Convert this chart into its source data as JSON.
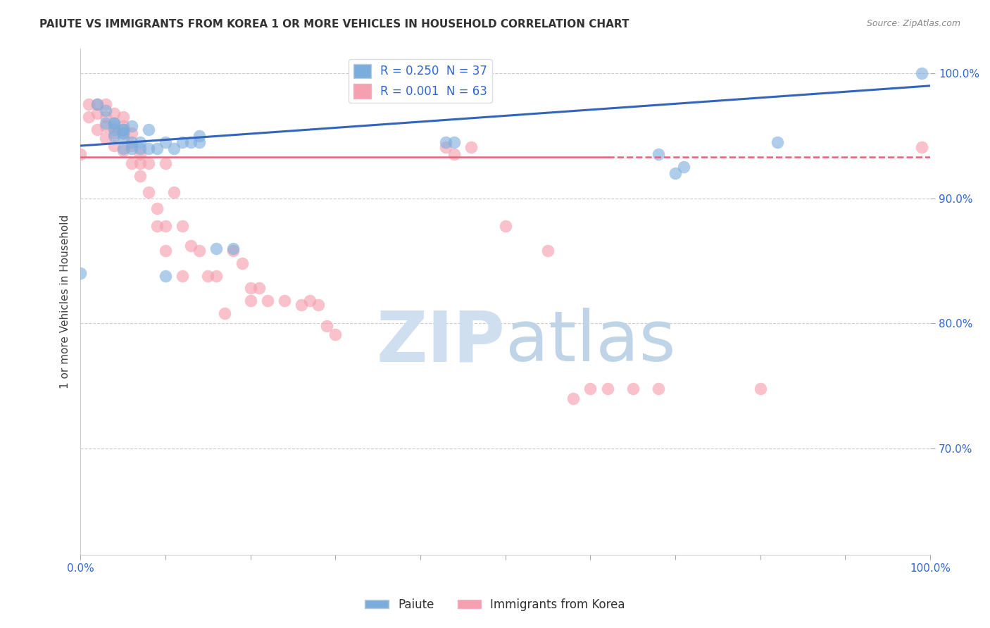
{
  "title": "PAIUTE VS IMMIGRANTS FROM KOREA 1 OR MORE VEHICLES IN HOUSEHOLD CORRELATION CHART",
  "source": "Source: ZipAtlas.com",
  "ylabel": "1 or more Vehicles in Household",
  "xlim": [
    0.0,
    1.0
  ],
  "ylim": [
    0.615,
    1.02
  ],
  "yticks": [
    0.7,
    0.8,
    0.9,
    1.0
  ],
  "ytick_labels": [
    "70.0%",
    "80.0%",
    "90.0%",
    "100.0%"
  ],
  "paiute_color": "#7aaddc",
  "korea_color": "#f5a0b0",
  "paiute_line_color": "#3366bb",
  "korea_line_color": "#e8637a",
  "paiute_scatter_edge": "#5588cc",
  "korea_scatter_edge": "#e8637a",
  "paiute_x": [
    0.0,
    0.02,
    0.03,
    0.03,
    0.04,
    0.04,
    0.04,
    0.04,
    0.05,
    0.05,
    0.05,
    0.05,
    0.05,
    0.06,
    0.06,
    0.06,
    0.07,
    0.07,
    0.08,
    0.08,
    0.09,
    0.1,
    0.1,
    0.11,
    0.12,
    0.13,
    0.14,
    0.14,
    0.16,
    0.18,
    0.43,
    0.44,
    0.68,
    0.7,
    0.71,
    0.82,
    0.99
  ],
  "paiute_y": [
    0.84,
    0.975,
    0.96,
    0.97,
    0.96,
    0.95,
    0.955,
    0.96,
    0.955,
    0.955,
    0.952,
    0.948,
    0.94,
    0.958,
    0.945,
    0.94,
    0.94,
    0.945,
    0.94,
    0.955,
    0.94,
    0.945,
    0.838,
    0.94,
    0.945,
    0.945,
    0.95,
    0.945,
    0.86,
    0.86,
    0.945,
    0.945,
    0.935,
    0.92,
    0.925,
    0.945,
    1.0
  ],
  "korea_x": [
    0.0,
    0.01,
    0.01,
    0.02,
    0.02,
    0.02,
    0.03,
    0.03,
    0.03,
    0.03,
    0.04,
    0.04,
    0.04,
    0.04,
    0.05,
    0.05,
    0.05,
    0.05,
    0.06,
    0.06,
    0.06,
    0.07,
    0.07,
    0.07,
    0.08,
    0.08,
    0.09,
    0.09,
    0.1,
    0.1,
    0.1,
    0.11,
    0.12,
    0.12,
    0.13,
    0.14,
    0.15,
    0.16,
    0.17,
    0.18,
    0.19,
    0.2,
    0.2,
    0.21,
    0.22,
    0.24,
    0.26,
    0.27,
    0.28,
    0.29,
    0.3,
    0.43,
    0.44,
    0.46,
    0.5,
    0.55,
    0.58,
    0.6,
    0.62,
    0.65,
    0.68,
    0.8,
    0.99
  ],
  "korea_y": [
    0.935,
    0.975,
    0.965,
    0.975,
    0.968,
    0.955,
    0.975,
    0.965,
    0.958,
    0.948,
    0.968,
    0.958,
    0.952,
    0.942,
    0.965,
    0.958,
    0.952,
    0.938,
    0.952,
    0.942,
    0.928,
    0.935,
    0.928,
    0.918,
    0.928,
    0.905,
    0.892,
    0.878,
    0.928,
    0.878,
    0.858,
    0.905,
    0.878,
    0.838,
    0.862,
    0.858,
    0.838,
    0.838,
    0.808,
    0.858,
    0.848,
    0.828,
    0.818,
    0.828,
    0.818,
    0.818,
    0.815,
    0.818,
    0.815,
    0.798,
    0.791,
    0.941,
    0.935,
    0.941,
    0.878,
    0.858,
    0.74,
    0.748,
    0.748,
    0.748,
    0.748,
    0.748,
    0.941
  ],
  "paiute_line_start_x": 0.0,
  "paiute_line_start_y": 0.942,
  "paiute_line_end_x": 1.0,
  "paiute_line_end_y": 0.99,
  "korea_line_y": 0.933,
  "korea_line_solid_end": 0.62,
  "watermark_zip_color": "#cddaed",
  "watermark_atlas_color": "#b8c8e0",
  "grid_color": "#cccccc",
  "title_color": "#333333",
  "source_color": "#888888",
  "tick_label_color": "#3366cc"
}
